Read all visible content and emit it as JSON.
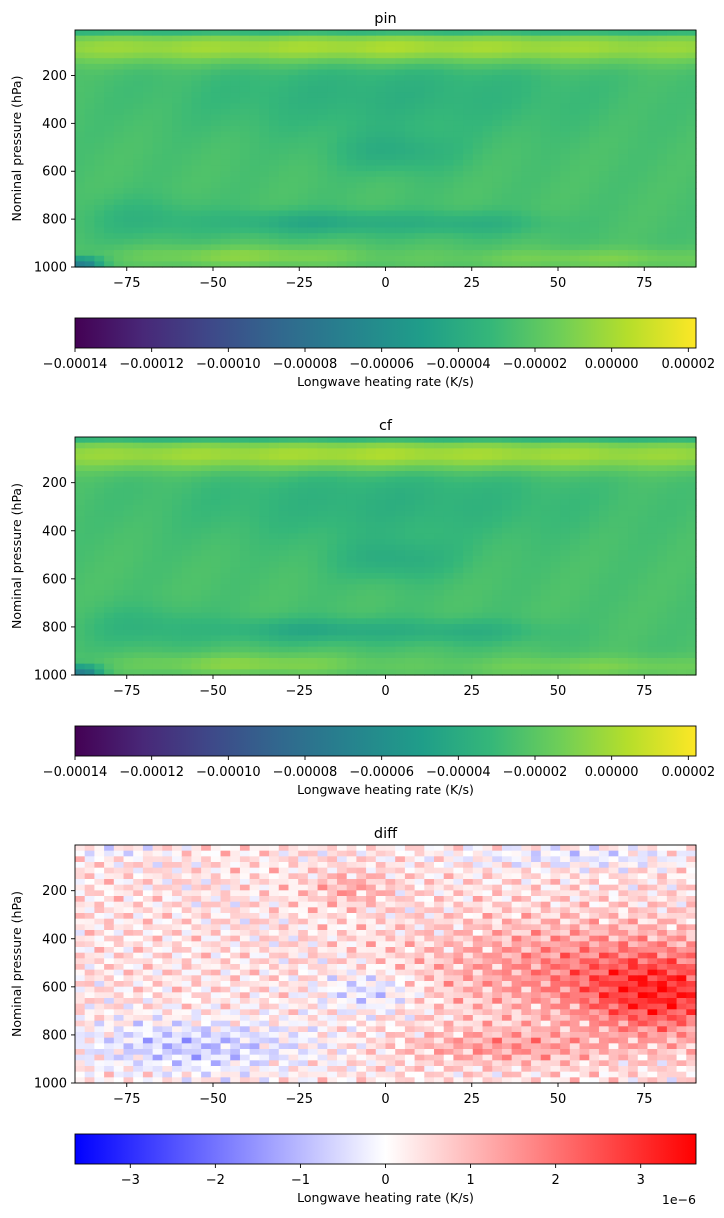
{
  "chart_data": [
    {
      "type": "heatmap",
      "title": "pin",
      "ylabel": "Nominal pressure (hPa)",
      "xlabel": "",
      "x_range": [
        -90,
        90
      ],
      "y_range": [
        1000,
        10
      ],
      "x_ticks": [
        -75,
        -50,
        -25,
        0,
        25,
        50,
        75
      ],
      "y_ticks": [
        200,
        400,
        600,
        800,
        1000
      ],
      "x_tick_labels": [
        "−75",
        "−50",
        "−25",
        "0",
        "25",
        "50",
        "75"
      ],
      "y_tick_labels": [
        "200",
        "400",
        "600",
        "800",
        "1000"
      ],
      "colormap": "viridis",
      "colorbar": {
        "label": "Longwave heating rate (K/s)",
        "range": [
          -0.00014,
          2.2e-05
        ],
        "ticks": [
          -0.00014,
          -0.00012,
          -0.0001,
          -8e-05,
          -6e-05,
          -4e-05,
          -2e-05,
          0,
          2e-05
        ],
        "tick_labels": [
          "−0.00014",
          "−0.00012",
          "−0.00010",
          "−0.00008",
          "−0.00006",
          "−0.00004",
          "−0.00002",
          "0.00000",
          "0.00002"
        ],
        "offset_label": ""
      }
    },
    {
      "type": "heatmap",
      "title": "cf",
      "ylabel": "Nominal pressure (hPa)",
      "xlabel": "",
      "x_range": [
        -90,
        90
      ],
      "y_range": [
        1000,
        10
      ],
      "x_ticks": [
        -75,
        -50,
        -25,
        0,
        25,
        50,
        75
      ],
      "y_ticks": [
        200,
        400,
        600,
        800,
        1000
      ],
      "x_tick_labels": [
        "−75",
        "−50",
        "−25",
        "0",
        "25",
        "50",
        "75"
      ],
      "y_tick_labels": [
        "200",
        "400",
        "600",
        "800",
        "1000"
      ],
      "colormap": "viridis",
      "colorbar": {
        "label": "Longwave heating rate (K/s)",
        "range": [
          -0.00014,
          2.2e-05
        ],
        "ticks": [
          -0.00014,
          -0.00012,
          -0.0001,
          -8e-05,
          -6e-05,
          -4e-05,
          -2e-05,
          0,
          2e-05
        ],
        "tick_labels": [
          "−0.00014",
          "−0.00012",
          "−0.00010",
          "−0.00008",
          "−0.00006",
          "−0.00004",
          "−0.00002",
          "0.00000",
          "0.00002"
        ],
        "offset_label": ""
      }
    },
    {
      "type": "heatmap",
      "title": "diff",
      "ylabel": "Nominal pressure (hPa)",
      "xlabel": "",
      "x_range": [
        -90,
        90
      ],
      "y_range": [
        1000,
        10
      ],
      "x_ticks": [
        -75,
        -50,
        -25,
        0,
        25,
        50,
        75
      ],
      "y_ticks": [
        200,
        400,
        600,
        800,
        1000
      ],
      "x_tick_labels": [
        "−75",
        "−50",
        "−25",
        "0",
        "25",
        "50",
        "75"
      ],
      "y_tick_labels": [
        "200",
        "400",
        "600",
        "800",
        "1000"
      ],
      "colormap": "bwr",
      "colorbar": {
        "label": "Longwave heating rate (K/s)",
        "range": [
          -3.65,
          3.65
        ],
        "ticks": [
          -3,
          -2,
          -1,
          0,
          1,
          2,
          3
        ],
        "tick_labels": [
          "−3",
          "−2",
          "−1",
          "0",
          "1",
          "2",
          "3"
        ],
        "offset_label": "1e−6"
      }
    }
  ]
}
